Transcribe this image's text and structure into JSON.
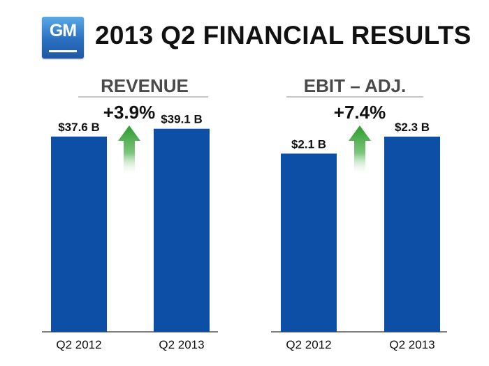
{
  "logo": {
    "text": "GM"
  },
  "header": {
    "title": "2013 Q2 FINANCIAL RESULTS"
  },
  "colors": {
    "bar": "#0d4ea6",
    "arrow": "#2c9a2c",
    "axis": "#555555"
  },
  "chart_data": [
    {
      "type": "bar",
      "title": "REVENUE",
      "categories": [
        "Q2 2012",
        "Q2 2013"
      ],
      "values": [
        37.6,
        39.1
      ],
      "value_labels": [
        "$37.6 B",
        "$39.1 B"
      ],
      "change_label": "+3.9%",
      "ylim": [
        0,
        45.1
      ],
      "grid": false,
      "legend": "none"
    },
    {
      "type": "bar",
      "title": "EBIT – ADJ.",
      "categories": [
        "Q2 2012",
        "Q2 2013"
      ],
      "values": [
        2.1,
        2.3
      ],
      "value_labels": [
        "$2.1 B",
        "$2.3 B"
      ],
      "change_label": "+7.4%",
      "ylim": [
        0,
        2.76
      ],
      "grid": false,
      "legend": "none"
    }
  ]
}
